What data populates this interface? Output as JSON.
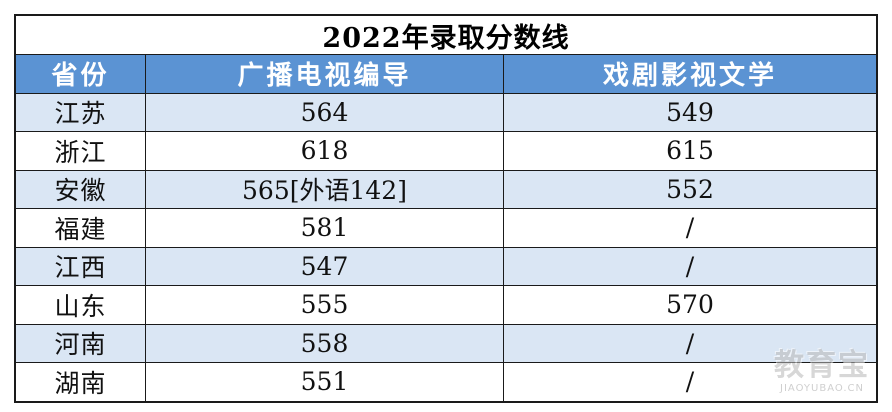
{
  "table": {
    "title": "2022年录取分数线",
    "headers": [
      "省份",
      "广播电视编导",
      "戏剧影视文学"
    ],
    "rows": [
      [
        "江苏",
        "564",
        "549"
      ],
      [
        "浙江",
        "618",
        "615"
      ],
      [
        "安徽",
        "565[外语142]",
        "552"
      ],
      [
        "福建",
        "581",
        "/"
      ],
      [
        "江西",
        "547",
        "/"
      ],
      [
        "山东",
        "555",
        "570"
      ],
      [
        "河南",
        "558",
        "/"
      ],
      [
        "湖南",
        "551",
        "/"
      ]
    ]
  },
  "watermark": {
    "logo": "教育宝",
    "url": "JIAOYUBAO.CN"
  },
  "colors": {
    "header_bg": "#5b93d3",
    "stripe_bg": "#dae6f4",
    "border": "#1a1a1a"
  }
}
